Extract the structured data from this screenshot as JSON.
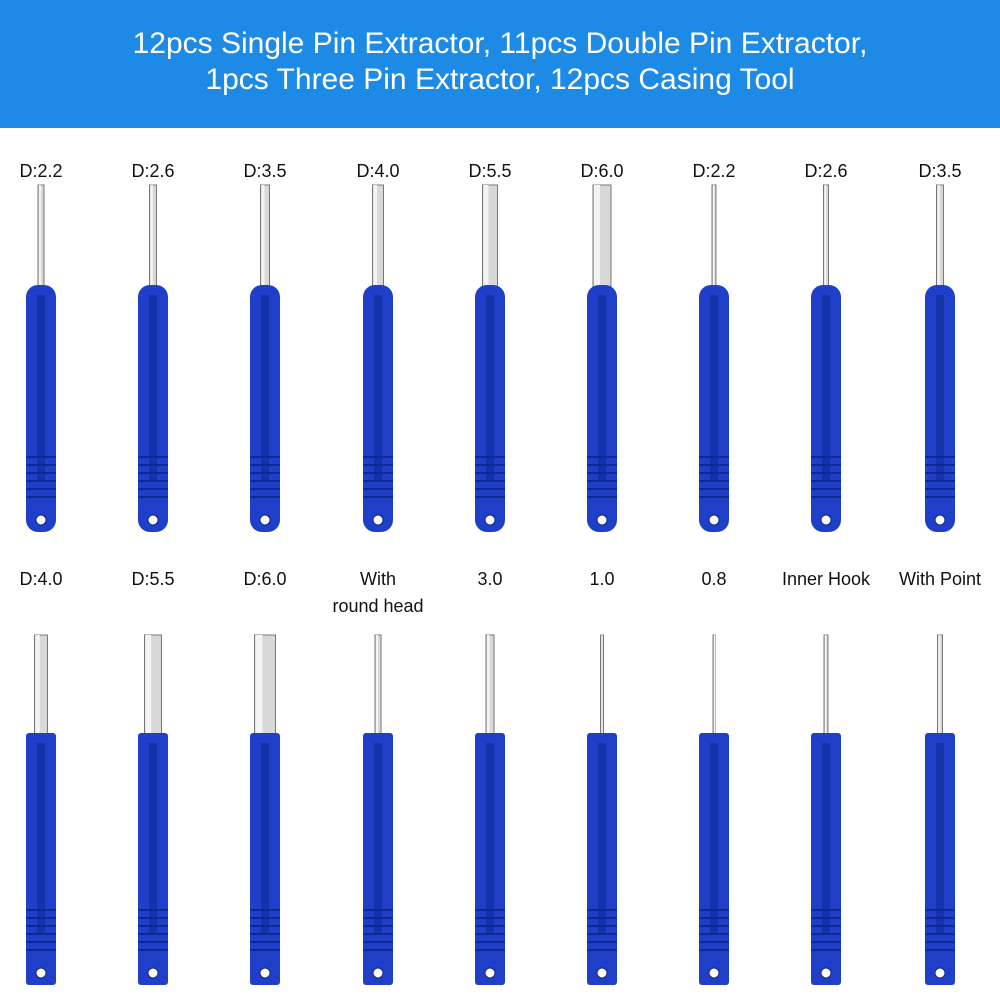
{
  "header": {
    "lines": [
      "12pcs Single Pin Extractor, 11pcs Double Pin Extractor,",
      "1pcs Three Pin Extractor, 12pcs Casing Tool"
    ]
  },
  "rows": [
    {
      "labels": [
        [
          "D:2.2"
        ],
        [
          "D:2.6"
        ],
        [
          "D:3.5"
        ],
        [
          "D:4.0"
        ],
        [
          "D:5.5"
        ],
        [
          "D:6.0"
        ],
        [
          "D:2.2"
        ],
        [
          "D:2.6"
        ],
        [
          "D:3.5"
        ]
      ]
    },
    {
      "labels": [
        [
          "D:4.0"
        ],
        [
          "D:5.5"
        ],
        [
          "D:6.0"
        ],
        [
          "With",
          "round head"
        ],
        [
          "3.0"
        ],
        [
          "1.0"
        ],
        [
          "0.8"
        ],
        [
          "Inner Hook"
        ],
        [
          "With Point"
        ]
      ]
    }
  ]
}
